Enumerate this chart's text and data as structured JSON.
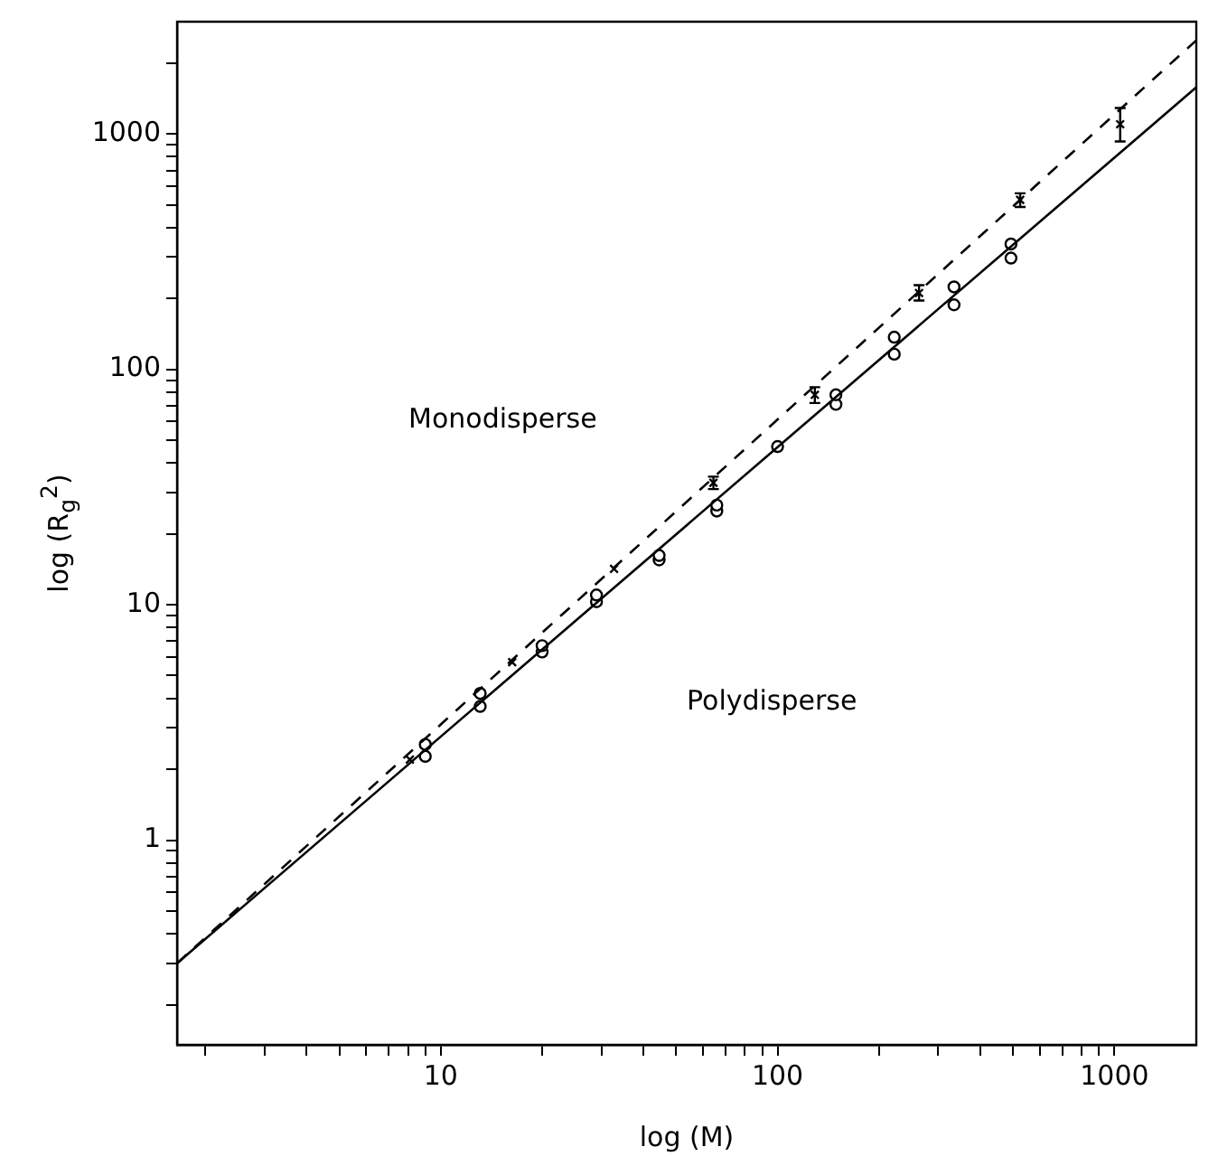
{
  "chart_data": {
    "type": "scatter",
    "xlabel": "log (M)",
    "ylabel": "log (R$_{g}$$^{2}$)",
    "log": "xy",
    "grid": false,
    "legend": false,
    "xlim": [
      1.65,
      1750
    ],
    "ylim": [
      0.135,
      3000
    ],
    "xticks": [
      {
        "value": 2,
        "label": null
      },
      {
        "value": 3,
        "label": null
      },
      {
        "value": 4,
        "label": null
      },
      {
        "value": 5,
        "label": null
      },
      {
        "value": 6,
        "label": null
      },
      {
        "value": 7,
        "label": null
      },
      {
        "value": 8,
        "label": null
      },
      {
        "value": 9,
        "label": null
      },
      10,
      {
        "value": 20,
        "label": null
      },
      {
        "value": 30,
        "label": null
      },
      {
        "value": 40,
        "label": null
      },
      {
        "value": 50,
        "label": null
      },
      {
        "value": 60,
        "label": null
      },
      {
        "value": 70,
        "label": null
      },
      {
        "value": 80,
        "label": null
      },
      {
        "value": 90,
        "label": null
      },
      100,
      {
        "value": 200,
        "label": null
      },
      {
        "value": 300,
        "label": null
      },
      {
        "value": 400,
        "label": null
      },
      {
        "value": 500,
        "label": null
      },
      {
        "value": 600,
        "label": null
      },
      {
        "value": 700,
        "label": null
      },
      {
        "value": 800,
        "label": null
      },
      {
        "value": 900,
        "label": null
      },
      1000
    ],
    "yticks": [
      {
        "value": 0.2,
        "label": null
      },
      {
        "value": 0.3,
        "label": null
      },
      {
        "value": 0.4,
        "label": null
      },
      {
        "value": 0.5,
        "label": null
      },
      {
        "value": 0.6,
        "label": null
      },
      {
        "value": 0.7,
        "label": null
      },
      {
        "value": 0.8,
        "label": null
      },
      {
        "value": 0.9,
        "label": null
      },
      1,
      {
        "value": 2,
        "label": null
      },
      {
        "value": 3,
        "label": null
      },
      {
        "value": 4,
        "label": null
      },
      {
        "value": 5,
        "label": null
      },
      {
        "value": 6,
        "label": null
      },
      {
        "value": 7,
        "label": null
      },
      {
        "value": 8,
        "label": null
      },
      {
        "value": 9,
        "label": null
      },
      10,
      {
        "value": 20,
        "label": null
      },
      {
        "value": 30,
        "label": null
      },
      {
        "value": 40,
        "label": null
      },
      {
        "value": 50,
        "label": null
      },
      {
        "value": 60,
        "label": null
      },
      {
        "value": 70,
        "label": null
      },
      {
        "value": 80,
        "label": null
      },
      {
        "value": 90,
        "label": null
      },
      100,
      {
        "value": 200,
        "label": null
      },
      {
        "value": 300,
        "label": null
      },
      {
        "value": 400,
        "label": null
      },
      {
        "value": 500,
        "label": null
      },
      {
        "value": 600,
        "label": null
      },
      {
        "value": 700,
        "label": null
      },
      {
        "value": 800,
        "label": null
      },
      {
        "value": 900,
        "label": null
      },
      1000,
      {
        "value": 2000,
        "label": null
      }
    ],
    "series": [
      {
        "type": "line",
        "color": "#000000",
        "line_style": "solid",
        "marker": "none",
        "x": [
          1.65,
          1750
        ],
        "values": [
          0.3,
          1580
        ]
      },
      {
        "type": "line",
        "color": "#000000",
        "line_style": "dashed",
        "marker": "none",
        "x": [
          1.65,
          1750
        ],
        "values": [
          0.3,
          2500
        ]
      },
      {
        "color": "#000000",
        "marker": "circle",
        "x": [
          9,
          9,
          13.1,
          13.1,
          20,
          20,
          29,
          29,
          44.5,
          44.5,
          66,
          66,
          100,
          149,
          149,
          222,
          222,
          334,
          334,
          493,
          493
        ],
        "values": [
          2.27,
          2.55,
          3.7,
          4.2,
          6.3,
          6.7,
          10.3,
          11,
          15.5,
          16.2,
          25,
          26.5,
          47,
          71,
          78,
          116,
          137,
          188,
          224,
          297,
          341
        ]
      },
      {
        "color": "#000000",
        "marker": "cross",
        "x": [
          8.1,
          16.3,
          32.7,
          64.5,
          129,
          263,
          525,
          1040
        ],
        "values": [
          2.2,
          5.7,
          14.2,
          33,
          78,
          211,
          525,
          1100
        ],
        "errors": [
          null,
          null,
          null,
          [
            31,
            35
          ],
          [
            72,
            84
          ],
          [
            196,
            228
          ],
          [
            490,
            560
          ],
          [
            930,
            1290
          ]
        ]
      }
    ],
    "annotations": [
      "Monodisperse",
      "Polydisperse"
    ]
  }
}
